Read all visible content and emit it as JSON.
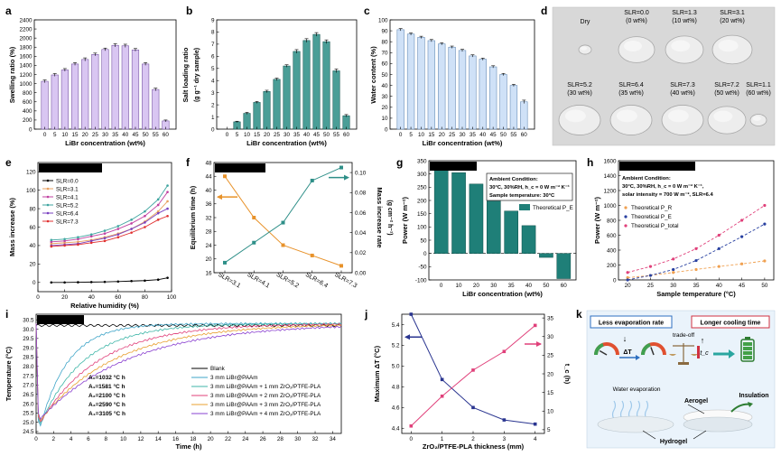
{
  "chart_data": [
    {
      "id": "a",
      "panel_label": "a",
      "type": "bar",
      "categories": [
        "0",
        "5",
        "10",
        "15",
        "20",
        "25",
        "30",
        "35",
        "40",
        "45",
        "50",
        "55",
        "60"
      ],
      "values": [
        1050,
        1190,
        1300,
        1430,
        1530,
        1640,
        1750,
        1840,
        1830,
        1740,
        1430,
        870,
        180
      ],
      "error": [
        30,
        30,
        30,
        30,
        35,
        30,
        30,
        35,
        35,
        30,
        30,
        30,
        20
      ],
      "xlabel": "LiBr concentration (wt%)",
      "ylabel": "Swelling ratio (%)",
      "ylim": [
        0,
        2400
      ],
      "yticks": [
        0,
        200,
        400,
        600,
        800,
        1000,
        1200,
        1400,
        1600,
        1800,
        2000,
        2200,
        2400
      ],
      "bar_color": "#D9C6F2",
      "bar_edge": "#7B5AA6"
    },
    {
      "id": "b",
      "panel_label": "b",
      "type": "bar",
      "categories": [
        "0",
        "5",
        "10",
        "15",
        "20",
        "25",
        "30",
        "35",
        "40",
        "45",
        "50",
        "55",
        "60"
      ],
      "values": [
        0,
        0.6,
        1.3,
        2.2,
        3.1,
        4.1,
        5.2,
        6.4,
        7.3,
        7.8,
        7.2,
        4.8,
        1.1
      ],
      "error": [
        0,
        0.05,
        0.08,
        0.08,
        0.1,
        0.1,
        0.1,
        0.15,
        0.15,
        0.15,
        0.15,
        0.15,
        0.1
      ],
      "xlabel": "LiBr concentration (wt%)",
      "ylabel": "Salt loading ratio (g g⁻¹ dry sample)",
      "ylim": [
        0,
        9
      ],
      "yticks": [
        0,
        1,
        2,
        3,
        4,
        5,
        6,
        7,
        8,
        9
      ],
      "bar_color": "#4A9E97",
      "bar_edge": "#1F5F5A"
    },
    {
      "id": "c",
      "panel_label": "c",
      "type": "bar",
      "categories": [
        "0",
        "5",
        "10",
        "15",
        "20",
        "25",
        "30",
        "35",
        "40",
        "45",
        "50",
        "55",
        "60"
      ],
      "values": [
        91,
        87,
        84,
        81,
        78,
        75,
        72,
        67,
        64,
        57,
        50,
        40,
        25
      ],
      "error": [
        1,
        1,
        1,
        1,
        1,
        1,
        1,
        1,
        1,
        1,
        1,
        1,
        1.5
      ],
      "xlabel": "LiBr concentration (wt%)",
      "ylabel": "Water content (%)",
      "ylim": [
        0,
        100
      ],
      "yticks": [
        0,
        10,
        20,
        30,
        40,
        50,
        60,
        70,
        80,
        90,
        100
      ],
      "bar_color": "#CFE1F7",
      "bar_edge": "#6B8FB8"
    },
    {
      "id": "e",
      "panel_label": "e",
      "type": "line",
      "title": "27°C, Equilibrium",
      "x": [
        10,
        20,
        30,
        40,
        50,
        60,
        70,
        80,
        90,
        97
      ],
      "series": [
        {
          "name": "SLR=0.0",
          "color": "#000000",
          "values": [
            0,
            0,
            0.2,
            0.4,
            0.6,
            1,
            1.5,
            2,
            3,
            5
          ]
        },
        {
          "name": "SLR=3.1",
          "color": "#E8A060",
          "values": [
            42,
            43,
            44,
            46,
            49,
            53,
            58,
            66,
            77,
            88
          ]
        },
        {
          "name": "SLR=4.1",
          "color": "#C040A0",
          "values": [
            44,
            45,
            47,
            50,
            53,
            58,
            64,
            72,
            84,
            98
          ]
        },
        {
          "name": "SLR=5.2",
          "color": "#3FA5A0",
          "values": [
            46,
            47,
            49,
            52,
            56,
            61,
            68,
            77,
            90,
            105
          ]
        },
        {
          "name": "SLR=6.4",
          "color": "#7A40C0",
          "values": [
            40,
            41,
            42,
            45,
            48,
            52,
            58,
            65,
            75,
            80
          ]
        },
        {
          "name": "SLR=7.3",
          "color": "#E03030",
          "values": [
            39,
            40,
            41,
            43,
            45,
            49,
            54,
            60,
            68,
            72
          ]
        }
      ],
      "xlabel": "Relative humidity (%)",
      "ylabel": "Mass increase (%)",
      "xlim": [
        0,
        100
      ],
      "ylim": [
        -10,
        130
      ],
      "xticks": [
        0,
        20,
        40,
        60,
        80,
        100
      ],
      "yticks": [
        0,
        20,
        40,
        60,
        80,
        100,
        120
      ]
    },
    {
      "id": "f",
      "panel_label": "f",
      "type": "line",
      "title": "27°C, 80% RH",
      "categories": [
        "SLR=3.1",
        "SLR=4.1",
        "SLR=5.2",
        "SLR=6.4",
        "SLR=7.3"
      ],
      "series": [
        {
          "name": "Equilibrium time",
          "axis": "left",
          "color": "#E8922A",
          "values": [
            44,
            32,
            24,
            21,
            18
          ]
        },
        {
          "name": "Mass increase rate",
          "axis": "right",
          "color": "#2E8F88",
          "values": [
            0.01,
            0.03,
            0.05,
            0.092,
            0.105
          ]
        }
      ],
      "ylabel": "Equilibrium time (h)",
      "ylabel_right": "Mass increase rate (g cm⁻² h⁻¹)",
      "ylim": [
        16,
        48
      ],
      "yticks": [
        16,
        20,
        24,
        28,
        32,
        36,
        40,
        44,
        48
      ],
      "ylim_right": [
        0,
        0.11
      ],
      "yticks_right": [
        "0.00",
        "0.02",
        "0.04",
        "0.06",
        "0.08",
        "0.10"
      ]
    },
    {
      "id": "g",
      "panel_label": "g",
      "type": "bar",
      "title": "LiBr solution",
      "categories": [
        "0",
        "10",
        "20",
        "30",
        "35",
        "40",
        "50",
        "60"
      ],
      "values": [
        325,
        305,
        262,
        198,
        160,
        105,
        -15,
        -95
      ],
      "xlabel": "LiBr concentration (wt%)",
      "ylabel": "Power (W m⁻²)",
      "ylim": [
        -100,
        350
      ],
      "yticks": [
        -100,
        -50,
        0,
        50,
        100,
        150,
        200,
        250,
        300,
        350
      ],
      "legend": "Theoretical P_E",
      "annotation": [
        "Ambient Condition:",
        "30°C, 30%RH, h_c = 0 W m⁻² K⁻¹",
        "Sample temperature: 30°C"
      ]
    },
    {
      "id": "h",
      "panel_label": "h",
      "type": "scatter",
      "title": "Bilayer passive cooler",
      "x": [
        20,
        25,
        30,
        35,
        40,
        45,
        50
      ],
      "series": [
        {
          "name": "Theoretical P_R",
          "color": "#F0A050",
          "values": [
            30,
            60,
            100,
            140,
            180,
            215,
            255
          ]
        },
        {
          "name": "Theoretical P_E",
          "color": "#2840A0",
          "values": [
            0,
            60,
            140,
            260,
            420,
            580,
            750
          ]
        },
        {
          "name": "Theoretical P_total",
          "color": "#E0407A",
          "values": [
            100,
            180,
            280,
            420,
            600,
            800,
            1000
          ]
        }
      ],
      "xlabel": "Sample temperature (°C)",
      "ylabel": "Power (W m⁻²)",
      "xlim": [
        18,
        52
      ],
      "ylim": [
        0,
        1600
      ],
      "xticks": [
        20,
        25,
        30,
        35,
        40,
        45,
        50
      ],
      "yticks": [
        0,
        200,
        400,
        600,
        800,
        1000,
        1200,
        1400,
        1600
      ],
      "annotation": [
        "Ambient Condition:",
        "30°C, 30%RH, h_c = 0 W m⁻² K⁻¹,",
        "solar intensity = 700 W m⁻², SLR=6.4"
      ]
    },
    {
      "id": "i",
      "panel_label": "i",
      "type": "line",
      "title": "30°C, 30%RH",
      "series": [
        {
          "name": "Blank",
          "color": "#000000",
          "label_area": "",
          "tau": 0,
          "base": 30.2
        },
        {
          "name": "3 mm LiBr@PAAm",
          "color": "#3FA5C8",
          "label_area": "A₀=1032 °C h",
          "tau": 3.2
        },
        {
          "name": "3 mm LiBr@PAAm + 1 mm ZrO₂/PTFE-PLA",
          "color": "#3FB6A8",
          "label_area": "A₁=1581 °C h",
          "tau": 5.0
        },
        {
          "name": "3 mm LiBr@PAAm + 2 mm ZrO₂/PTFE-PLA",
          "color": "#E0407A",
          "label_area": "A₂=2100 °C h",
          "tau": 6.8
        },
        {
          "name": "3 mm LiBr@PAAm + 3 mm ZrO₂/PTFE-PLA",
          "color": "#E8A030",
          "label_area": "A₃=2590 °C h",
          "tau": 8.5
        },
        {
          "name": "3 mm LiBr@PAAm + 4 mm ZrO₂/PTFE-PLA",
          "color": "#8A40D0",
          "label_area": "A₄=3105 °C h",
          "tau": 10.2
        }
      ],
      "xlabel": "Time (h)",
      "ylabel": "Temperature (°C)",
      "xlim": [
        0,
        35
      ],
      "ylim": [
        24.4,
        30.8
      ],
      "xticks": [
        0,
        2,
        4,
        6,
        8,
        10,
        12,
        14,
        16,
        18,
        20,
        22,
        24,
        26,
        28,
        30,
        32,
        34
      ],
      "yticks": [
        24.5,
        25.0,
        25.5,
        26.0,
        26.5,
        27.0,
        27.5,
        28.0,
        28.5,
        29.0,
        29.5,
        30.0,
        30.5
      ]
    },
    {
      "id": "j",
      "panel_label": "j",
      "type": "line",
      "x": [
        0,
        1,
        2,
        3,
        4
      ],
      "series": [
        {
          "name": "Maximum ΔT",
          "axis": "left",
          "color": "#2A3590",
          "values": [
            5.5,
            4.87,
            4.6,
            4.48,
            4.44
          ]
        },
        {
          "name": "t_c",
          "axis": "right",
          "color": "#E0407A",
          "values": [
            6,
            14,
            21,
            26,
            33
          ]
        }
      ],
      "xlabel": "ZrO₂/PTFE-PLA thickness (mm)",
      "ylabel": "Maximum ΔT (°C)",
      "ylabel_right": "t_c (h)",
      "xlim": [
        -0.3,
        4.3
      ],
      "ylim": [
        4.35,
        5.5
      ],
      "yticks": [
        4.4,
        4.6,
        4.8,
        5.0,
        5.2,
        5.4
      ],
      "ylim_right": [
        4,
        36
      ],
      "yticks_right": [
        5,
        10,
        15,
        20,
        25,
        30,
        35
      ]
    }
  ],
  "panel_d": {
    "label": "d",
    "items": [
      {
        "line1": "Dry",
        "line2": ""
      },
      {
        "line1": "SLR=0.0",
        "line2": "(0 wt%)"
      },
      {
        "line1": "SLR=1.3",
        "line2": "(10 wt%)"
      },
      {
        "line1": "SLR=3.1",
        "line2": "(20 wt%)"
      },
      {
        "line1": "SLR=5.2",
        "line2": "(30 wt%)"
      },
      {
        "line1": "SLR=6.4",
        "line2": "(35 wt%)"
      },
      {
        "line1": "SLR=7.3",
        "line2": "(40 wt%)"
      },
      {
        "line1": "SLR=7.2",
        "line2": "(50 wt%)"
      },
      {
        "line1": "SLR=1.1",
        "line2": "(60 wt%)"
      }
    ]
  },
  "panel_k": {
    "label": "k",
    "box_left": "Less evaporation rate",
    "box_right": "Longer cooling time",
    "tradeoff": "trade-off",
    "delta_t": "ΔT",
    "t_c": "t_c",
    "water_evap": "Water evaporation",
    "aerogel": "Aerogel",
    "insulation": "Insulation",
    "hydrogel": "Hydrogel"
  }
}
